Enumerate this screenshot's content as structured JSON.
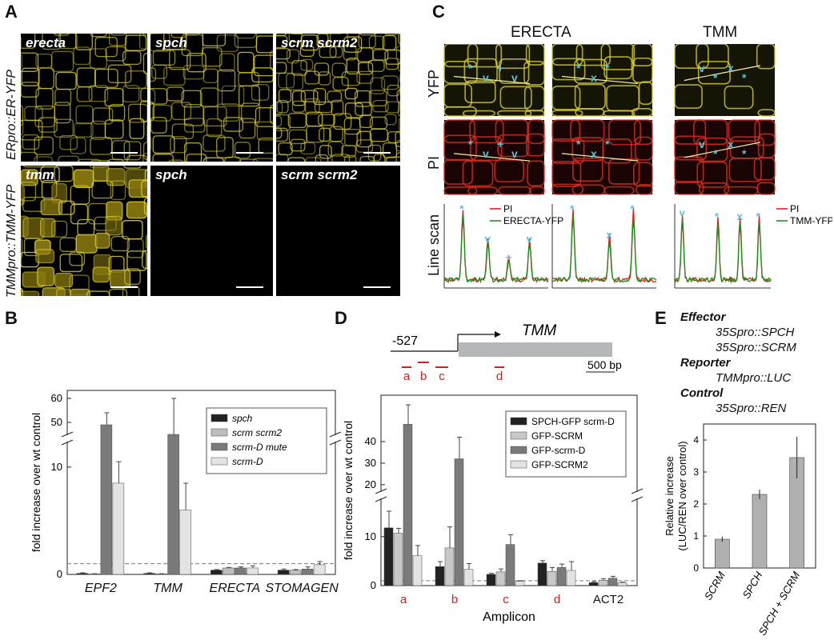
{
  "panels": {
    "A": "A",
    "B": "B",
    "C": "C",
    "D": "D",
    "E": "E"
  },
  "panelA": {
    "row_label_1": "ERpro::ER-YFP",
    "row_label_2": "TMMpro::TMM-YFP",
    "images": [
      {
        "label": "erecta",
        "signal": "yes"
      },
      {
        "label": "spch",
        "signal": "yes"
      },
      {
        "label": "scrm scrm2",
        "signal": "yes"
      },
      {
        "label": "tmm",
        "signal": "yes"
      },
      {
        "label": "spch",
        "signal": "none"
      },
      {
        "label": "scrm scrm2",
        "signal": "none"
      }
    ]
  },
  "panelC": {
    "col_erecta": "ERECTA",
    "col_tmm": "TMM",
    "row_yfp": "YFP",
    "row_pi": "PI",
    "row_linescan": "Line scan",
    "legend_erecta": [
      "PI",
      "ERECTA-YFP"
    ],
    "legend_tmm": [
      "PI",
      "TMM-YFP"
    ],
    "colors": {
      "pi": "#e02020",
      "yfp": "#1a8f1a",
      "marker": "#5bc0de"
    },
    "markers": {
      "erecta1": [
        "*",
        "v",
        "+",
        "v"
      ],
      "erecta2": [
        "*",
        "x",
        "*"
      ],
      "tmm": [
        "v",
        "*",
        "x",
        "*"
      ]
    }
  },
  "panelB": {
    "chart_data": {
      "type": "bar",
      "categories": [
        "EPF2",
        "TMM",
        "ERECTA",
        "STOMAGEN"
      ],
      "series": [
        {
          "name": "spch",
          "values": [
            0.1,
            0.1,
            0.4,
            0.4
          ],
          "errors": [
            0.05,
            0.05,
            0.05,
            0.1
          ]
        },
        {
          "name": "scrm scrm2",
          "values": [
            0.05,
            0.05,
            0.6,
            0.4
          ],
          "errors": [
            0.02,
            0.02,
            0.05,
            0.05
          ]
        },
        {
          "name": "scrm-D mute",
          "values": [
            49,
            45,
            0.6,
            0.5
          ],
          "errors": [
            5,
            15,
            0.1,
            0.2
          ]
        },
        {
          "name": "scrm-D",
          "values": [
            8.5,
            6,
            0.6,
            0.9
          ],
          "errors": [
            2,
            2.5,
            0.2,
            0.3
          ]
        }
      ],
      "ylabel": "fold increase over wt control",
      "yticks_lower": [
        "0",
        "10"
      ],
      "yticks_upper": [
        "50",
        "60"
      ],
      "axis_break": true,
      "reference_line": 1,
      "colors": [
        "#222222",
        "#bdbdbd",
        "#7a7a7a",
        "#e3e3e3"
      ]
    }
  },
  "panelD": {
    "gene_label": "TMM",
    "promoter_label": "-527",
    "scale_label": "500 bp",
    "amplicon_marks": [
      "a",
      "b",
      "c",
      "d"
    ],
    "chart_data": {
      "type": "bar",
      "categories": [
        "a",
        "b",
        "c",
        "d",
        "ACT2"
      ],
      "category_colors": [
        "#cc2222",
        "#cc2222",
        "#cc2222",
        "#cc2222",
        "#111111"
      ],
      "series": [
        {
          "name": "SPCH-GFP scrm-D",
          "values": [
            11.8,
            3.9,
            2.3,
            4.6,
            0.6
          ],
          "errors": [
            3.4,
            1,
            0.2,
            0.5,
            0.2
          ]
        },
        {
          "name": "GFP-SCRM",
          "values": [
            10.7,
            7.7,
            2.8,
            2.9,
            1.1
          ],
          "errors": [
            1,
            4.3,
            0.6,
            0.8,
            0.3
          ]
        },
        {
          "name": "GFP-scrm-D",
          "values": [
            48,
            32,
            8.4,
            3.7,
            1.5
          ],
          "errors": [
            9,
            10,
            2,
            0.7,
            0.4
          ]
        },
        {
          "name": "GFP-SCRM2",
          "values": [
            6.1,
            3.3,
            0.9,
            3.1,
            0.6
          ],
          "errors": [
            2.1,
            1.2,
            0.1,
            1.8,
            0.1
          ]
        }
      ],
      "xlabel": "Amplicon",
      "ylabel": "fold increase over wt control",
      "yticks_lower": [
        "0",
        "10"
      ],
      "yticks_upper": [
        "20",
        "30",
        "40"
      ],
      "axis_break": true,
      "reference_line": 1,
      "colors": [
        "#222222",
        "#c8c8c8",
        "#7a7a7a",
        "#e3e3e3"
      ]
    }
  },
  "panelE": {
    "effector_title": "Effector",
    "effector_items": [
      "35Spro::SPCH",
      "35Spro::SCRM"
    ],
    "reporter_title": "Reporter",
    "reporter_items": [
      "TMMpro::LUC"
    ],
    "control_title": "Control",
    "control_items": [
      "35Spro::REN"
    ],
    "chart_data": {
      "type": "bar",
      "categories": [
        "SCRM",
        "SPCH",
        "SPCH + SCRM"
      ],
      "values": [
        0.9,
        2.3,
        3.45
      ],
      "errors": [
        0.08,
        0.15,
        0.65
      ],
      "ylabel": "Relative increase\n(LUC/REN over control)",
      "ylim": [
        0,
        4.5
      ],
      "yticks": [
        "0",
        "1",
        "2",
        "3",
        "4"
      ],
      "color": "#b0b0b0"
    }
  }
}
